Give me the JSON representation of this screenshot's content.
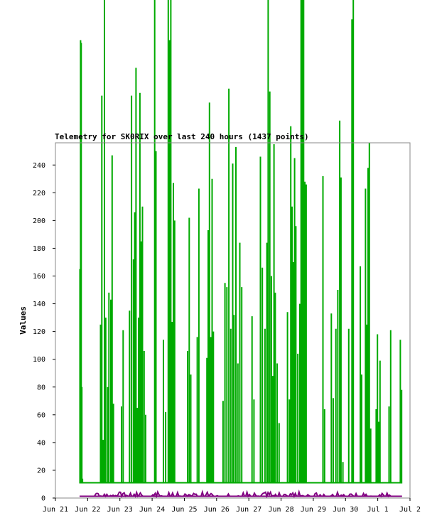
{
  "chart_data": {
    "type": "line",
    "title": "Telemetry for SK0RIX over last 240 hours (1437 points)",
    "ylabel": "Values",
    "xlabel": "",
    "ylim": [
      0,
      256
    ],
    "xlim": [
      0,
      11
    ],
    "grid": false,
    "legend": "none",
    "y_ticks": [
      0,
      20,
      40,
      60,
      80,
      100,
      120,
      140,
      160,
      180,
      200,
      220,
      240
    ],
    "x_ticks": [
      {
        "value": 0,
        "label": "Jun 21"
      },
      {
        "value": 1,
        "label": "Jun 22"
      },
      {
        "value": 2,
        "label": "Jun 23"
      },
      {
        "value": 3,
        "label": "Jun 24"
      },
      {
        "value": 4,
        "label": "Jun 25"
      },
      {
        "value": 5,
        "label": "Jun 26"
      },
      {
        "value": 6,
        "label": "Jun 27"
      },
      {
        "value": 7,
        "label": "Jun 28"
      },
      {
        "value": 8,
        "label": "Jun 29"
      },
      {
        "value": 9,
        "label": "Jun 30"
      },
      {
        "value": 10,
        "label": "Jul 1"
      },
      {
        "value": 11,
        "label": "Jul 2"
      }
    ],
    "baseline_value": 11,
    "series": [
      {
        "name": "",
        "color": "#00aa00",
        "start": 0.75,
        "end": 10.75,
        "spikes": [
          [
            0.76,
            165
          ],
          [
            0.78,
            330
          ],
          [
            0.8,
            328
          ],
          [
            0.82,
            80
          ],
          [
            0.84,
            14
          ],
          [
            1.4,
            125
          ],
          [
            1.44,
            290
          ],
          [
            1.48,
            42
          ],
          [
            1.52,
            400
          ],
          [
            1.56,
            130
          ],
          [
            1.62,
            80
          ],
          [
            1.66,
            148
          ],
          [
            1.72,
            143
          ],
          [
            1.76,
            247
          ],
          [
            1.8,
            68
          ],
          [
            2.05,
            66
          ],
          [
            2.1,
            121
          ],
          [
            2.3,
            135
          ],
          [
            2.36,
            290
          ],
          [
            2.42,
            172
          ],
          [
            2.46,
            206
          ],
          [
            2.5,
            310
          ],
          [
            2.54,
            65
          ],
          [
            2.58,
            130
          ],
          [
            2.62,
            292
          ],
          [
            2.66,
            185
          ],
          [
            2.7,
            210
          ],
          [
            2.75,
            106
          ],
          [
            2.8,
            60
          ],
          [
            3.08,
            390
          ],
          [
            3.12,
            250
          ],
          [
            3.35,
            114
          ],
          [
            3.42,
            62
          ],
          [
            3.5,
            450
          ],
          [
            3.54,
            330
          ],
          [
            3.58,
            480
          ],
          [
            3.62,
            127
          ],
          [
            3.66,
            227
          ],
          [
            3.7,
            200
          ],
          [
            4.1,
            106
          ],
          [
            4.15,
            202
          ],
          [
            4.2,
            89
          ],
          [
            4.4,
            116
          ],
          [
            4.45,
            223
          ],
          [
            4.7,
            101
          ],
          [
            4.74,
            193
          ],
          [
            4.78,
            285
          ],
          [
            4.82,
            116
          ],
          [
            4.86,
            230
          ],
          [
            4.9,
            120
          ],
          [
            5.2,
            70
          ],
          [
            5.26,
            155
          ],
          [
            5.32,
            152
          ],
          [
            5.38,
            295
          ],
          [
            5.44,
            122
          ],
          [
            5.5,
            241
          ],
          [
            5.54,
            132
          ],
          [
            5.6,
            253
          ],
          [
            5.66,
            97
          ],
          [
            5.72,
            184
          ],
          [
            5.78,
            152
          ],
          [
            6.1,
            131
          ],
          [
            6.16,
            71
          ],
          [
            6.36,
            246
          ],
          [
            6.42,
            166
          ],
          [
            6.5,
            122
          ],
          [
            6.56,
            184
          ],
          [
            6.6,
            400
          ],
          [
            6.65,
            293
          ],
          [
            6.7,
            160
          ],
          [
            6.74,
            88
          ],
          [
            6.78,
            255
          ],
          [
            6.82,
            148
          ],
          [
            6.88,
            97
          ],
          [
            6.94,
            54
          ],
          [
            7.2,
            134
          ],
          [
            7.26,
            71
          ],
          [
            7.3,
            268
          ],
          [
            7.34,
            210
          ],
          [
            7.38,
            170
          ],
          [
            7.42,
            245
          ],
          [
            7.46,
            196
          ],
          [
            7.52,
            104
          ],
          [
            7.58,
            140
          ],
          [
            7.62,
            400
          ],
          [
            7.66,
            365
          ],
          [
            7.7,
            460
          ],
          [
            7.74,
            228
          ],
          [
            7.78,
            226
          ],
          [
            8.3,
            232
          ],
          [
            8.35,
            64
          ],
          [
            8.56,
            133
          ],
          [
            8.62,
            72
          ],
          [
            8.7,
            122
          ],
          [
            8.76,
            150
          ],
          [
            8.82,
            272
          ],
          [
            8.86,
            231
          ],
          [
            8.92,
            26
          ],
          [
            9.1,
            122
          ],
          [
            9.2,
            345
          ],
          [
            9.24,
            400
          ],
          [
            9.46,
            167
          ],
          [
            9.5,
            89
          ],
          [
            9.62,
            223
          ],
          [
            9.66,
            125
          ],
          [
            9.7,
            238
          ],
          [
            9.74,
            256
          ],
          [
            9.78,
            50
          ],
          [
            9.95,
            64
          ],
          [
            9.99,
            118
          ],
          [
            10.03,
            55
          ],
          [
            10.07,
            99
          ],
          [
            10.35,
            66
          ],
          [
            10.4,
            121
          ],
          [
            10.7,
            114
          ],
          [
            10.74,
            78
          ]
        ]
      },
      {
        "name": "",
        "color": "#800080",
        "start": 0.75,
        "end": 10.75,
        "baseline_value": 1.3,
        "noise_max": 4.5
      }
    ]
  }
}
